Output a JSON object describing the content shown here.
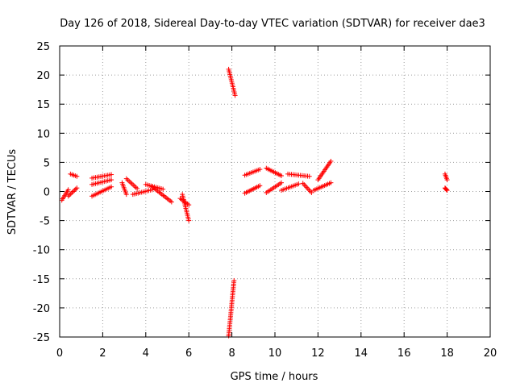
{
  "chart_data": {
    "type": "scatter",
    "title": "Day 126 of 2018, Sidereal Day-to-day VTEC variation (SDTVAR) for receiver dae3",
    "xlabel": "GPS time / hours",
    "ylabel": "SDTVAR / TECUs",
    "xlim": [
      0,
      20
    ],
    "ylim": [
      -25,
      25
    ],
    "x_ticks": [
      "0",
      "2",
      "4",
      "6",
      "8",
      "10",
      "12",
      "14",
      "16",
      "18",
      "20"
    ],
    "y_ticks": [
      "25",
      "20",
      "15",
      "10",
      "5",
      "0",
      "-5",
      "-10",
      "-15",
      "-20",
      "-25"
    ],
    "grid": true,
    "marker": "plus",
    "series_color": "#ff0000",
    "series": [
      {
        "name": "SDTVAR",
        "segments": [
          {
            "x": [
              0.1,
              0.4
            ],
            "y": [
              -1.5,
              0.3
            ]
          },
          {
            "x": [
              0.4,
              0.8
            ],
            "y": [
              -0.8,
              0.6
            ]
          },
          {
            "x": [
              0.5,
              0.8
            ],
            "y": [
              3.0,
              2.6
            ]
          },
          {
            "x": [
              1.5,
              2.4
            ],
            "y": [
              2.3,
              2.9
            ]
          },
          {
            "x": [
              1.5,
              2.4
            ],
            "y": [
              1.2,
              2.0
            ]
          },
          {
            "x": [
              1.5,
              2.4
            ],
            "y": [
              -0.8,
              0.8
            ]
          },
          {
            "x": [
              2.9,
              3.1
            ],
            "y": [
              1.5,
              -0.5
            ]
          },
          {
            "x": [
              3.1,
              3.6
            ],
            "y": [
              2.2,
              0.5
            ]
          },
          {
            "x": [
              3.4,
              4.3
            ],
            "y": [
              -0.5,
              0.3
            ]
          },
          {
            "x": [
              4.3,
              5.2
            ],
            "y": [
              0.8,
              -1.8
            ]
          },
          {
            "x": [
              4.0,
              4.8
            ],
            "y": [
              1.2,
              0.4
            ]
          },
          {
            "x": [
              5.7,
              6.0
            ],
            "y": [
              -0.5,
              -5.0
            ]
          },
          {
            "x": [
              5.6,
              6.0
            ],
            "y": [
              -1.2,
              -2.3
            ]
          },
          {
            "x": [
              7.85,
              8.15
            ],
            "y": [
              21.0,
              16.5
            ]
          },
          {
            "x": [
              7.85,
              8.1
            ],
            "y": [
              -24.8,
              -15.3
            ]
          },
          {
            "x": [
              8.6,
              9.3
            ],
            "y": [
              2.8,
              3.8
            ]
          },
          {
            "x": [
              8.6,
              9.3
            ],
            "y": [
              -0.3,
              1.0
            ]
          },
          {
            "x": [
              9.6,
              10.3
            ],
            "y": [
              4.0,
              2.7
            ]
          },
          {
            "x": [
              9.6,
              10.3
            ],
            "y": [
              -0.2,
              1.5
            ]
          },
          {
            "x": [
              10.3,
              11.1
            ],
            "y": [
              0.2,
              1.3
            ]
          },
          {
            "x": [
              10.6,
              11.6
            ],
            "y": [
              3.0,
              2.6
            ]
          },
          {
            "x": [
              11.3,
              11.7
            ],
            "y": [
              1.4,
              -0.2
            ]
          },
          {
            "x": [
              11.8,
              12.6
            ],
            "y": [
              0.2,
              1.5
            ]
          },
          {
            "x": [
              12.0,
              12.6
            ],
            "y": [
              2.0,
              5.2
            ]
          },
          {
            "x": [
              17.9,
              18.0
            ],
            "y": [
              3.0,
              2.0
            ]
          },
          {
            "x": [
              17.9,
              18.0
            ],
            "y": [
              0.6,
              0.2
            ]
          }
        ]
      }
    ]
  }
}
